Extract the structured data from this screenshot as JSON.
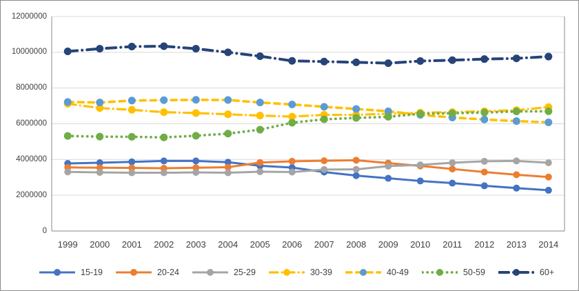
{
  "chart_data": {
    "type": "line",
    "title": "",
    "xlabel": "",
    "ylabel": "",
    "x": [
      1999,
      2000,
      2001,
      2002,
      2003,
      2004,
      2005,
      2006,
      2007,
      2008,
      2009,
      2010,
      2011,
      2012,
      2013,
      2014
    ],
    "x_labels": [
      "1999",
      "2000",
      "2001",
      "2002",
      "2003",
      "2004",
      "2005",
      "2006",
      "2007",
      "2008",
      "2009",
      "2010",
      "2011",
      "2012",
      "2013",
      "2014"
    ],
    "ylim": [
      0,
      12000000
    ],
    "y_ticks": [
      0,
      2000000,
      4000000,
      6000000,
      8000000,
      10000000,
      12000000
    ],
    "y_tick_labels": [
      "0",
      "2000000",
      "4000000",
      "6000000",
      "8000000",
      "10000000",
      "12000000"
    ],
    "grid": true,
    "legend_position": "bottom",
    "axis_color": "#9d9d9d",
    "grid_color": "#d9d9d9",
    "label_color": "#404040",
    "background_color": "#ffffff",
    "series": [
      {
        "name": "15-19",
        "color": "#4472C4",
        "marker_color": "#4472C4",
        "line_style": "solid",
        "line_width": 3,
        "marker_r": 5,
        "values": [
          3780000,
          3820000,
          3870000,
          3920000,
          3920000,
          3850000,
          3650000,
          3550000,
          3300000,
          3100000,
          2950000,
          2800000,
          2680000,
          2530000,
          2400000,
          2280000
        ]
      },
      {
        "name": "20-24",
        "color": "#ED7D31",
        "marker_color": "#ED7D31",
        "line_style": "solid",
        "line_width": 3,
        "marker_r": 5,
        "values": [
          3560000,
          3540000,
          3530000,
          3510000,
          3540000,
          3570000,
          3830000,
          3900000,
          3930000,
          3960000,
          3800000,
          3640000,
          3470000,
          3300000,
          3150000,
          3020000
        ]
      },
      {
        "name": "25-29",
        "color": "#A5A5A5",
        "marker_color": "#A5A5A5",
        "line_style": "solid",
        "line_width": 3,
        "marker_r": 5,
        "values": [
          3310000,
          3280000,
          3260000,
          3260000,
          3280000,
          3260000,
          3320000,
          3300000,
          3440000,
          3450000,
          3630000,
          3700000,
          3820000,
          3900000,
          3920000,
          3820000
        ]
      },
      {
        "name": "30-39",
        "color": "#FFC000",
        "marker_color": "#FFC000",
        "line_style": "dashdot",
        "line_width": 3.2,
        "marker_r": 5.5,
        "values": [
          7120000,
          6880000,
          6780000,
          6650000,
          6600000,
          6530000,
          6460000,
          6400000,
          6500000,
          6500000,
          6560000,
          6620000,
          6650000,
          6700000,
          6760000,
          6930000
        ]
      },
      {
        "name": "40-49",
        "color": "#FFC000",
        "marker_color": "#5B9BD5",
        "line_style": "dash",
        "line_width": 3.6,
        "marker_r": 5.5,
        "values": [
          7220000,
          7190000,
          7300000,
          7320000,
          7340000,
          7330000,
          7190000,
          7080000,
          6950000,
          6830000,
          6700000,
          6500000,
          6350000,
          6240000,
          6150000,
          6080000
        ]
      },
      {
        "name": "50-59",
        "color": "#70AD47",
        "marker_color": "#70AD47",
        "line_style": "dot",
        "line_width": 3.8,
        "marker_r": 5.5,
        "values": [
          5320000,
          5280000,
          5270000,
          5240000,
          5330000,
          5450000,
          5670000,
          6060000,
          6250000,
          6330000,
          6390000,
          6560000,
          6590000,
          6630000,
          6690000,
          6700000
        ]
      },
      {
        "name": "60+",
        "color": "#264478",
        "marker_color": "#264478",
        "line_style": "longdashdot",
        "line_width": 4,
        "marker_r": 5.5,
        "values": [
          10050000,
          10200000,
          10320000,
          10340000,
          10200000,
          10000000,
          9780000,
          9520000,
          9480000,
          9440000,
          9390000,
          9510000,
          9560000,
          9620000,
          9660000,
          9760000
        ]
      }
    ]
  }
}
